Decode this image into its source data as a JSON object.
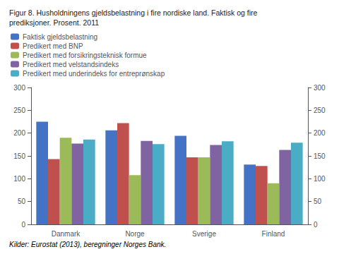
{
  "chart_data": {
    "type": "bar",
    "title": "Figur 8. Husholdningens gjeldsbelastning i fire nordiske land. Faktisk og fire\nprediksjoner. Prosent. 2011",
    "annotations": [
      "Kilder: Eurostat (2013), beregninger Norges Bank."
    ],
    "categories": [
      "Danmark",
      "Norge",
      "Sverige",
      "Finland"
    ],
    "series": [
      {
        "name": "Faktisk gjeldsbelastning",
        "color": "#4472C4",
        "values": [
          225,
          206,
          194,
          131
        ]
      },
      {
        "name": "Predikert med BNP",
        "color": "#C0504D",
        "values": [
          143,
          222,
          147,
          128
        ]
      },
      {
        "name": "Predikert med forsikringsteknisk formue",
        "color": "#9BBB59",
        "values": [
          190,
          108,
          147,
          90
        ]
      },
      {
        "name": "Predikert med velstandsindeks",
        "color": "#8064A2",
        "values": [
          177,
          183,
          174,
          163
        ]
      },
      {
        "name": "Predikert med underindeks for entreprønskap",
        "color": "#4BACC6",
        "values": [
          186,
          176,
          182,
          179
        ]
      }
    ],
    "ylim": [
      0,
      300
    ],
    "yticks": [
      0,
      50,
      100,
      150,
      200,
      250,
      300
    ],
    "y2lim": [
      0,
      300
    ],
    "y2ticks": [
      0,
      50,
      100,
      150,
      200,
      250,
      300
    ],
    "grid": false,
    "legend": "upper left"
  }
}
